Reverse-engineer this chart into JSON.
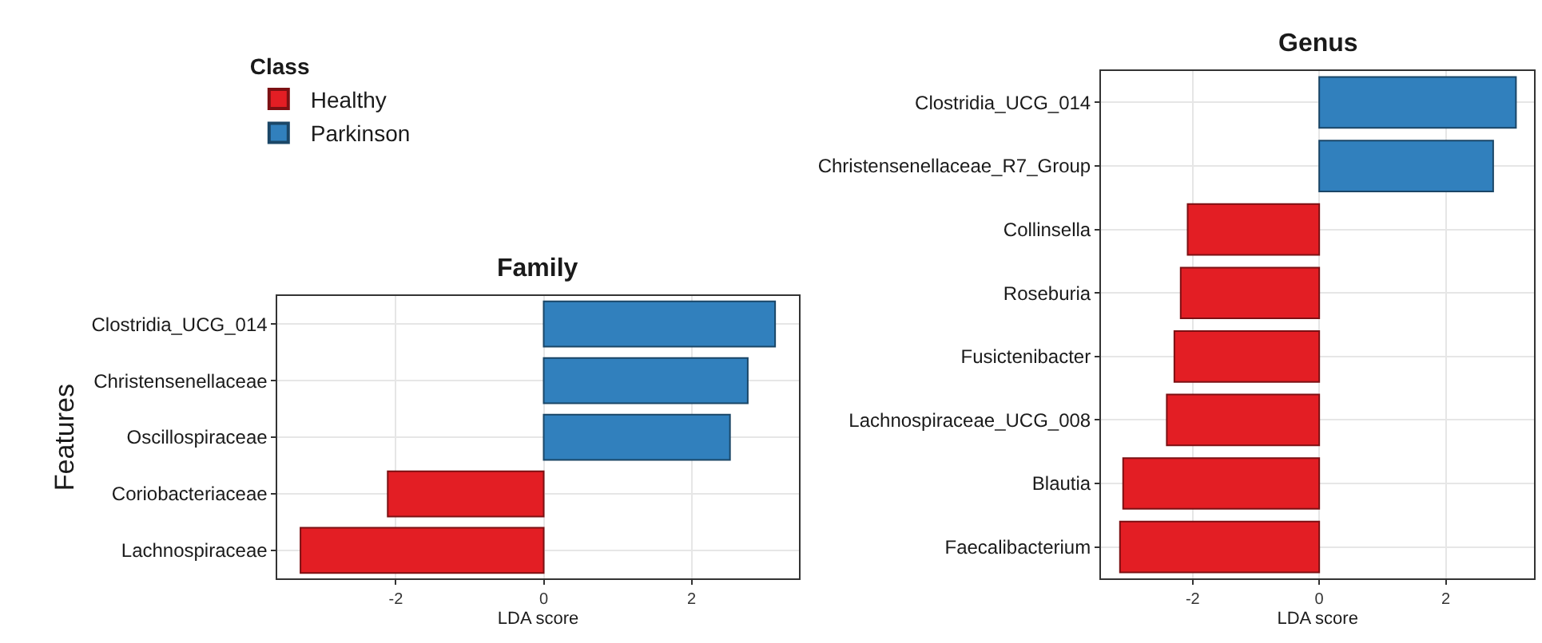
{
  "chart_data": [
    {
      "type": "bar",
      "orientation": "horizontal",
      "title": "Family",
      "xlabel": "LDA score",
      "ylabel": "Features",
      "legend_title": "Class",
      "legend": "top left",
      "grid": true,
      "categories": [
        "Clostridia_UCG_014",
        "Christensenellaceae",
        "Oscillospiraceae",
        "Coriobacteriaceae",
        "Lachnospiraceae"
      ],
      "series": [
        {
          "name": "Healthy",
          "color": "#e31e24",
          "values": [
            null,
            null,
            null,
            -2.11,
            -3.29
          ]
        },
        {
          "name": "Parkinson",
          "color": "#3180bd",
          "values": [
            3.13,
            2.76,
            2.52,
            null,
            null
          ]
        }
      ],
      "xlim": [
        -3.6,
        3.45
      ],
      "xticks": [
        -2,
        0,
        2
      ]
    },
    {
      "type": "bar",
      "orientation": "horizontal",
      "title": "Genus",
      "xlabel": "LDA score",
      "grid": true,
      "categories": [
        "Clostridia_UCG_014",
        "Christensenellaceae_R7_Group",
        "Collinsella",
        "Roseburia",
        "Fusictenibacter",
        "Lachnospiraceae_UCG_008",
        "Blautia",
        "Faecalibacterium"
      ],
      "series": [
        {
          "name": "Healthy",
          "color": "#e31e24",
          "values": [
            null,
            null,
            -2.08,
            -2.19,
            -2.29,
            -2.41,
            -3.1,
            -3.15
          ]
        },
        {
          "name": "Parkinson",
          "color": "#3180bd",
          "values": [
            3.11,
            2.75,
            null,
            null,
            null,
            null,
            null,
            null
          ]
        }
      ],
      "xlim": [
        -3.45,
        3.4
      ],
      "xticks": [
        -2,
        0,
        2
      ]
    }
  ]
}
